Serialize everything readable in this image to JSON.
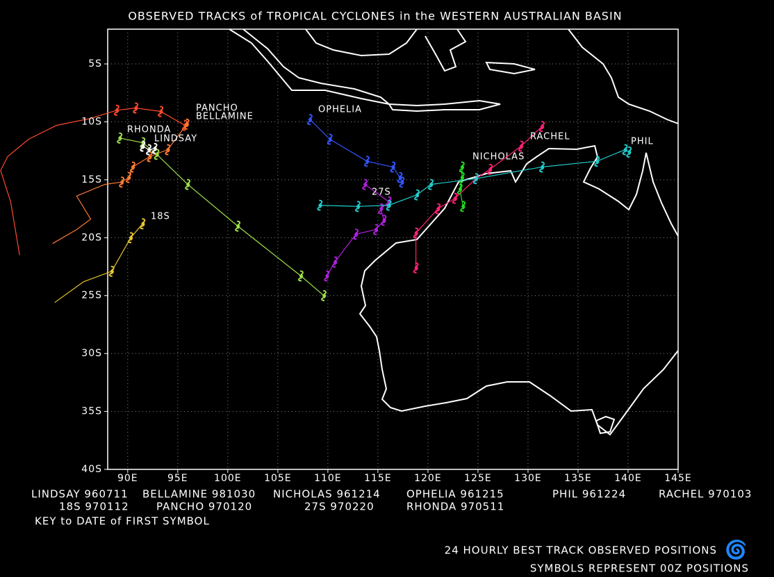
{
  "map": {
    "title": "OBSERVED TRACKS of TROPICAL CYCLONES in the WESTERN AUSTRALIAN BASIN",
    "xlim": [
      88,
      145
    ],
    "ylim": [
      -40,
      -2
    ],
    "xticks": [
      {
        "value": 90,
        "label": "90E"
      },
      {
        "value": 95,
        "label": "95E"
      },
      {
        "value": 100,
        "label": "100E"
      },
      {
        "value": 105,
        "label": "105E"
      },
      {
        "value": 110,
        "label": "110E"
      },
      {
        "value": 115,
        "label": "115E"
      },
      {
        "value": 120,
        "label": "120E"
      },
      {
        "value": 125,
        "label": "125E"
      },
      {
        "value": 130,
        "label": "130E"
      },
      {
        "value": 135,
        "label": "135E"
      },
      {
        "value": 140,
        "label": "140E"
      },
      {
        "value": 145,
        "label": "145E"
      }
    ],
    "yticks": [
      {
        "value": -5,
        "label": "5S"
      },
      {
        "value": -10,
        "label": "10S"
      },
      {
        "value": -15,
        "label": "15S"
      },
      {
        "value": -20,
        "label": "20S"
      },
      {
        "value": -25,
        "label": "25S"
      },
      {
        "value": -30,
        "label": "30S"
      },
      {
        "value": -35,
        "label": "35S"
      },
      {
        "value": -40,
        "label": "40S"
      }
    ],
    "grid": true,
    "tracks": [
      {
        "name": "PANCHO",
        "color": "#ff4a2e",
        "lon": [
          95.7,
          93.3,
          90.8,
          88.9,
          86.3,
          82.9,
          80.1,
          78.0,
          77.3,
          78.3,
          79.2
        ],
        "lat": [
          -10.3,
          -9.1,
          -8.8,
          -9.0,
          -9.7,
          -10.3,
          -11.5,
          -13.0,
          -14.2,
          -16.9,
          -21.5
        ]
      },
      {
        "name": "BELLAMINE",
        "color": "#ff7a33",
        "lon": [
          95.9,
          94.0,
          92.2,
          90.5,
          90.1,
          89.4,
          87.7,
          84.9,
          86.3,
          84.9,
          82.5
        ],
        "lat": [
          -10.2,
          -12.4,
          -13.0,
          -13.9,
          -14.8,
          -15.2,
          -15.4,
          -16.4,
          -18.4,
          -19.3,
          -20.5
        ]
      },
      {
        "name": "RHONDA",
        "color": "#9ee04a",
        "lon": [
          89.2,
          91.5,
          92.9,
          96.0,
          101.0,
          107.3,
          109.6
        ],
        "lat": [
          -11.4,
          -11.8,
          -12.8,
          -15.4,
          -19.0,
          -23.3,
          -25.0
        ]
      },
      {
        "name": "LINDSAY",
        "color": "#ffffff",
        "lon": [
          91.5,
          92.1,
          92.7
        ],
        "lat": [
          -12.1,
          -12.4,
          -12.3
        ]
      },
      {
        "name": "18S",
        "color": "#e8c830",
        "lon": [
          82.7,
          85.6,
          88.4,
          90.3,
          91.5
        ],
        "lat": [
          -25.6,
          -23.8,
          -22.9,
          -20.0,
          -18.8
        ]
      },
      {
        "name": "OPHELIA",
        "color": "#3355ff",
        "lon": [
          108.2,
          110.2,
          113.9,
          116.5,
          117.2,
          117.4
        ],
        "lat": [
          -9.8,
          -11.5,
          -13.4,
          -13.9,
          -14.8,
          -15.2
        ]
      },
      {
        "name": "27S",
        "color": "#b022dd",
        "lon": [
          109.9,
          110.7,
          112.8,
          114.8,
          115.6,
          115.3,
          116.1,
          113.7
        ],
        "lat": [
          -23.3,
          -22.1,
          -19.7,
          -19.3,
          -18.5,
          -17.5,
          -16.9,
          -15.4
        ]
      },
      {
        "name": "NICHOLAS",
        "color": "#22dd22",
        "lon": [
          123.4,
          123.4,
          123.2,
          123.5
        ],
        "lat": [
          -13.9,
          -14.8,
          -15.8,
          -17.3
        ]
      },
      {
        "name": "RACHEL",
        "color": "#ff2277",
        "lon": [
          131.4,
          129.3,
          126.2,
          124.8,
          122.7,
          121.0,
          118.8,
          118.8
        ],
        "lat": [
          -10.4,
          -12.1,
          -14.1,
          -14.9,
          -16.6,
          -17.5,
          -19.6,
          -22.6
        ]
      },
      {
        "name": "PHIL",
        "color": "#22cccc",
        "lon": [
          140.1,
          139.7,
          136.9,
          131.4,
          124.8,
          120.3,
          118.9,
          116.1,
          113.0,
          109.2
        ],
        "lat": [
          -12.6,
          -12.4,
          -13.4,
          -13.9,
          -14.9,
          -15.4,
          -16.3,
          -17.2,
          -17.3,
          -17.2
        ]
      }
    ],
    "key": [
      [
        "LINDSAY 960711",
        "BELLAMINE 981030",
        "NICHOLAS 961214",
        "OPHELIA 961215",
        "PHIL 961224",
        "RACHEL 970103"
      ],
      [
        "18S 970112",
        "PANCHO 970120",
        "27S 970220",
        "RHONDA 970511"
      ]
    ],
    "key_note": "KEY to DATE of FIRST SYMBOL",
    "footer": [
      "24 HOURLY BEST TRACK OBSERVED POSITIONS",
      "SYMBOLS REPRESENT 00Z POSITIONS"
    ]
  }
}
